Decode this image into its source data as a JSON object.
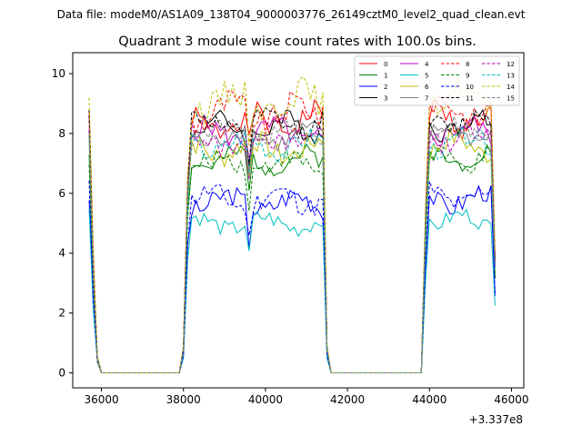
{
  "header": {
    "data_file": "Data file: modeM0/AS1A09_138T04_9000003776_26149cztM0_level2_quad_clean.evt"
  },
  "chart_data": {
    "type": "line",
    "title": "Quadrant 3 module wise count rates with 100.0s bins.",
    "xlabel": "",
    "ylabel": "",
    "x_offset_label": "+3.337e8",
    "xlim": [
      35300,
      46300
    ],
    "ylim": [
      -0.5,
      10.7
    ],
    "x_ticks": [
      36000,
      38000,
      40000,
      42000,
      44000,
      46000
    ],
    "x_tick_labels": [
      "36000",
      "38000",
      "40000",
      "42000",
      "44000",
      "46000"
    ],
    "y_ticks": [
      0,
      2,
      4,
      6,
      8,
      10
    ],
    "y_tick_labels": [
      "0",
      "2",
      "4",
      "6",
      "8",
      "10"
    ],
    "segments": [
      {
        "start": 35700,
        "end": 41600
      },
      {
        "start": 43850,
        "end": 45650
      }
    ],
    "gaps": [
      {
        "from": 36000,
        "to": 37900
      },
      {
        "from": 41600,
        "to": 43850
      }
    ],
    "legend": {
      "placement": "top-right",
      "ncols": 4
    },
    "series": [
      {
        "name": "0",
        "color": "#ff0000",
        "dash": "solid",
        "level": 8.4,
        "amp": 0.55,
        "seed": 1
      },
      {
        "name": "1",
        "color": "#008000",
        "dash": "solid",
        "level": 7.1,
        "amp": 0.4,
        "seed": 2
      },
      {
        "name": "2",
        "color": "#0000ff",
        "dash": "solid",
        "level": 5.7,
        "amp": 0.45,
        "seed": 3
      },
      {
        "name": "3",
        "color": "#000000",
        "dash": "solid",
        "level": 8.2,
        "amp": 0.45,
        "seed": 4
      },
      {
        "name": "4",
        "color": "#bf00bf",
        "dash": "solid",
        "level": 8.0,
        "amp": 0.45,
        "seed": 5
      },
      {
        "name": "5",
        "color": "#00bfbf",
        "dash": "solid",
        "level": 5.0,
        "amp": 0.35,
        "seed": 6
      },
      {
        "name": "6",
        "color": "#bfbf00",
        "dash": "solid",
        "level": 7.5,
        "amp": 0.5,
        "seed": 7
      },
      {
        "name": "7",
        "color": "#808080",
        "dash": "solid",
        "level": 7.9,
        "amp": 0.4,
        "seed": 8
      },
      {
        "name": "8",
        "color": "#ff0000",
        "dash": "dashed",
        "level": 8.7,
        "amp": 0.6,
        "seed": 9
      },
      {
        "name": "9",
        "color": "#008000",
        "dash": "dashed",
        "level": 7.0,
        "amp": 0.4,
        "seed": 10
      },
      {
        "name": "10",
        "color": "#0000ff",
        "dash": "dashed",
        "level": 5.8,
        "amp": 0.45,
        "seed": 11
      },
      {
        "name": "11",
        "color": "#000000",
        "dash": "dashed",
        "level": 8.3,
        "amp": 0.45,
        "seed": 12
      },
      {
        "name": "12",
        "color": "#bf00bf",
        "dash": "dashed",
        "level": 7.8,
        "amp": 0.45,
        "seed": 13
      },
      {
        "name": "13",
        "color": "#00bfbf",
        "dash": "dashed",
        "level": 7.6,
        "amp": 0.45,
        "seed": 14
      },
      {
        "name": "14",
        "color": "#bfbf00",
        "dash": "dashed",
        "level": 9.1,
        "amp": 0.6,
        "seed": 15
      },
      {
        "name": "15",
        "color": "#808080",
        "dash": "dashed",
        "level": 8.0,
        "amp": 0.4,
        "seed": 16
      }
    ]
  }
}
